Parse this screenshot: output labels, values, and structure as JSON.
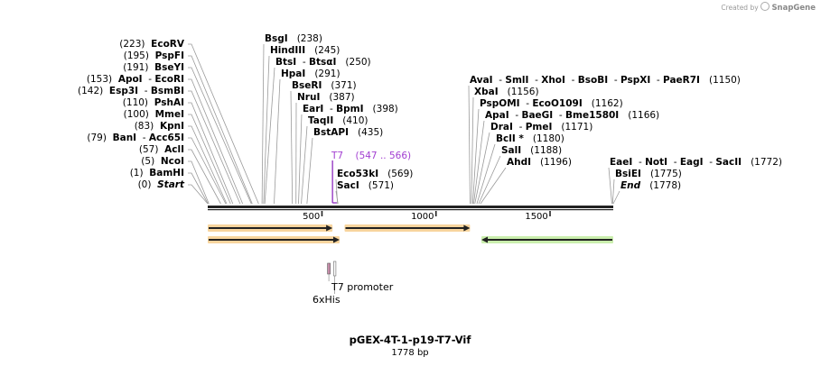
{
  "credit": {
    "prefix": "Created by",
    "brand": "SnapGene"
  },
  "map": {
    "name": "pGEX-4T-1-p19-T7-Vif",
    "length_label": "1778 bp",
    "total_bp": 1778,
    "ticks": [
      {
        "bp": 500,
        "label": "500"
      },
      {
        "bp": 1000,
        "label": "1000"
      },
      {
        "bp": 1500,
        "label": "1500"
      }
    ],
    "sites_left": [
      {
        "pos": "(223)",
        "parts": [
          "EcoRV"
        ],
        "bp": 223
      },
      {
        "pos": "(195)",
        "parts": [
          "PspFI"
        ],
        "bp": 195
      },
      {
        "pos": "(191)",
        "parts": [
          "BseYI"
        ],
        "bp": 191
      },
      {
        "pos": "(153)",
        "parts": [
          "ApoI",
          "EcoRI"
        ],
        "bp": 153
      },
      {
        "pos": "(142)",
        "parts": [
          "Esp3I",
          "BsmBI"
        ],
        "bp": 142
      },
      {
        "pos": "(110)",
        "parts": [
          "PshAI"
        ],
        "bp": 110
      },
      {
        "pos": "(100)",
        "parts": [
          "MmeI"
        ],
        "bp": 100
      },
      {
        "pos": "(83)",
        "parts": [
          "KpnI"
        ],
        "bp": 83
      },
      {
        "pos": "(79)",
        "parts": [
          "BanI",
          "Acc65I"
        ],
        "bp": 79
      },
      {
        "pos": "(57)",
        "parts": [
          "AclI"
        ],
        "bp": 57
      },
      {
        "pos": "(5)",
        "parts": [
          "NcoI"
        ],
        "bp": 5
      },
      {
        "pos": "(1)",
        "parts": [
          "BamHI"
        ],
        "bp": 1
      },
      {
        "pos": "(0)",
        "parts": [
          "Start"
        ],
        "bp": 0,
        "italic": true
      }
    ],
    "sites_mid": [
      {
        "pos": "(238)",
        "parts": [
          "BsgI"
        ],
        "bp": 238
      },
      {
        "pos": "(245)",
        "parts": [
          "HindIII"
        ],
        "bp": 245
      },
      {
        "pos": "(250)",
        "parts": [
          "BtsI",
          "BtsαI"
        ],
        "bp": 250
      },
      {
        "pos": "(291)",
        "parts": [
          "HpaI"
        ],
        "bp": 291
      },
      {
        "pos": "(371)",
        "parts": [
          "BseRI"
        ],
        "bp": 371
      },
      {
        "pos": "(387)",
        "parts": [
          "NruI"
        ],
        "bp": 387
      },
      {
        "pos": "(398)",
        "parts": [
          "EarI",
          "BpmI"
        ],
        "bp": 398
      },
      {
        "pos": "(410)",
        "parts": [
          "TaqII"
        ],
        "bp": 410
      },
      {
        "pos": "(435)",
        "parts": [
          "BstAPI"
        ],
        "bp": 435
      }
    ],
    "primer": {
      "name": "T7",
      "range": "(547 .. 566)",
      "start": 547,
      "end": 566
    },
    "sites_near": [
      {
        "pos": "(569)",
        "parts": [
          "Eco53kI"
        ],
        "bp": 569
      },
      {
        "pos": "(571)",
        "parts": [
          "SacI"
        ],
        "bp": 571
      }
    ],
    "sites_right": [
      {
        "pos": "(1150)",
        "parts": [
          "AvaI",
          "SmlI",
          "XhoI",
          "BsoBI",
          "PspXI",
          "PaeR7I"
        ],
        "bp": 1150
      },
      {
        "pos": "(1156)",
        "parts": [
          "XbaI"
        ],
        "bp": 1156
      },
      {
        "pos": "(1162)",
        "parts": [
          "PspOMI",
          "EcoO109I"
        ],
        "bp": 1162
      },
      {
        "pos": "(1166)",
        "parts": [
          "ApaI",
          "BaeGI",
          "Bme1580I"
        ],
        "bp": 1166
      },
      {
        "pos": "(1171)",
        "parts": [
          "DraI",
          "PmeI"
        ],
        "bp": 1171
      },
      {
        "pos": "(1180)",
        "parts": [
          "BclI *"
        ],
        "bp": 1180
      },
      {
        "pos": "(1188)",
        "parts": [
          "SalI"
        ],
        "bp": 1188
      },
      {
        "pos": "(1196)",
        "parts": [
          "AhdI"
        ],
        "bp": 1196
      }
    ],
    "sites_end": [
      {
        "pos": "(1772)",
        "parts": [
          "EaeI",
          "NotI",
          "EagI",
          "SacII"
        ],
        "bp": 1772
      },
      {
        "pos": "(1775)",
        "parts": [
          "BsiEI"
        ],
        "bp": 1775
      },
      {
        "pos": "(1778)",
        "parts": [
          "End"
        ],
        "bp": 1778,
        "italic": true
      }
    ],
    "features": [
      {
        "start": 0,
        "end": 547,
        "dir": "forward",
        "color": "#f3b24e",
        "row": 1
      },
      {
        "start": 0,
        "end": 578,
        "dir": "forward",
        "color": "#f3b24e",
        "row": 2
      },
      {
        "start": 600,
        "end": 1150,
        "dir": "forward",
        "color": "#f3b24e",
        "row": 1
      },
      {
        "start": 1200,
        "end": 1778,
        "dir": "reverse",
        "color": "#9ee06a",
        "row": 2
      }
    ],
    "small_features": [
      {
        "label": "T7 promoter",
        "bp": 560,
        "color": "#cccccc"
      },
      {
        "label": "6xHis",
        "bp": 537,
        "color": "#c58ca8"
      }
    ]
  }
}
